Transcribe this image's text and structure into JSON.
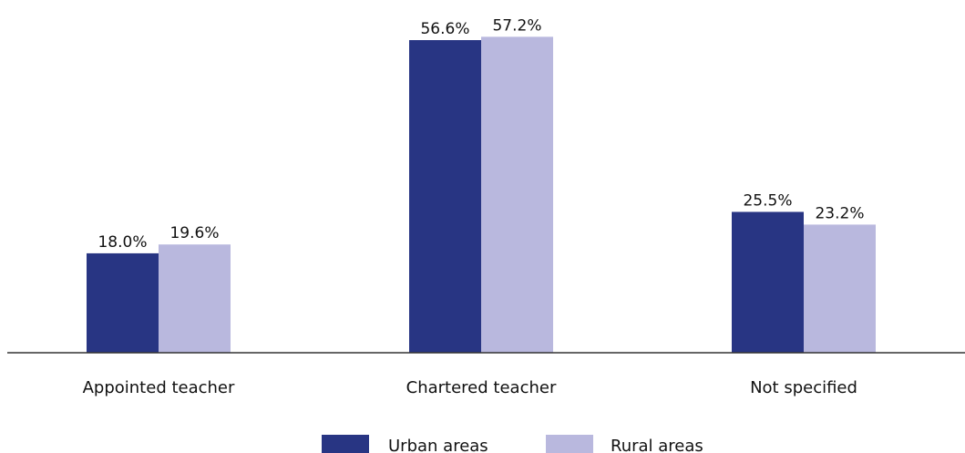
{
  "chart_data": {
    "type": "bar",
    "categories": [
      "Appointed teacher",
      "Chartered teacher",
      "Not specified"
    ],
    "series": [
      {
        "name": "Urban areas",
        "values": [
          18.0,
          56.6,
          25.5
        ],
        "value_labels": [
          "18.0%",
          "56.6%",
          "25.5%"
        ],
        "color": "#283583"
      },
      {
        "name": "Rural areas",
        "values": [
          19.6,
          57.2,
          23.2
        ],
        "value_labels": [
          "19.6%",
          "57.2%",
          "23.2%"
        ],
        "color": "#b9b8de"
      }
    ],
    "ylim": [
      0,
      60
    ],
    "y_unit": "%",
    "grid": false,
    "y_axis_shown": false,
    "legend_position": "bottom-center",
    "baseline_color": "#333333"
  }
}
